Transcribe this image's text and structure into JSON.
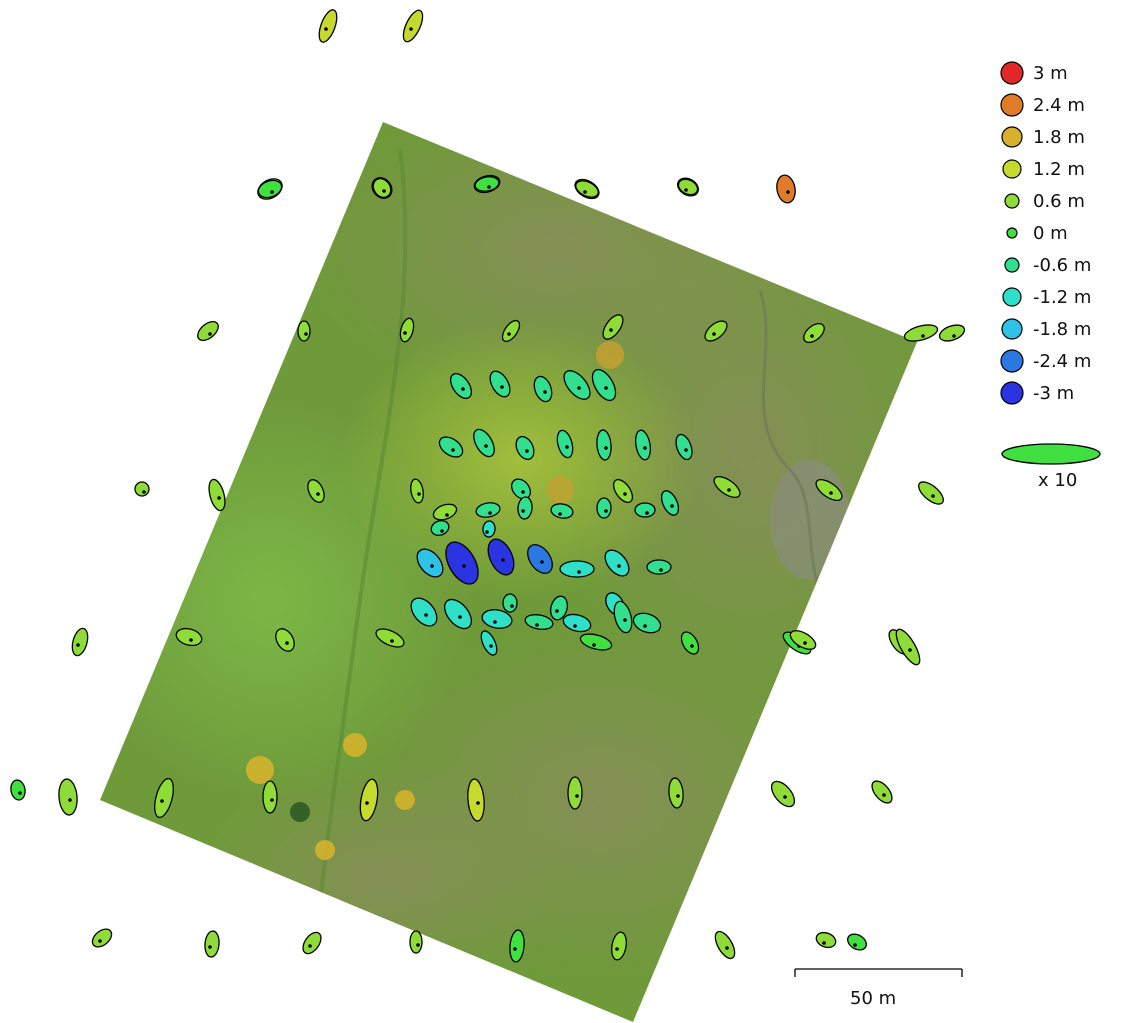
{
  "legend": {
    "items": [
      {
        "label": "3 m",
        "color": "#e02828"
      },
      {
        "label": "2.4 m",
        "color": "#e07b2a"
      },
      {
        "label": "1.8 m",
        "color": "#d9b02e"
      },
      {
        "label": "1.2 m",
        "color": "#c6da2e"
      },
      {
        "label": "0.6 m",
        "color": "#8fdc38"
      },
      {
        "label": "0 m",
        "color": "#3fe040"
      },
      {
        "label": "-0.6 m",
        "color": "#32df8f"
      },
      {
        "label": "-1.2 m",
        "color": "#2ee0c8"
      },
      {
        "label": "-1.8 m",
        "color": "#2ec2e6"
      },
      {
        "label": "-2.4 m",
        "color": "#2c78e2"
      },
      {
        "label": "-3 m",
        "color": "#2a34e0"
      }
    ],
    "scale_ellipse_color": "#3fe040",
    "scale_factor_label": "x 10"
  },
  "scale_bar": {
    "label": "50 m"
  },
  "camera_errors": [
    {
      "level": "1.2 m"
    },
    {
      "level": "1.2 m"
    },
    {
      "level": "1.2 m"
    },
    {
      "level": "1.2 m"
    },
    {
      "level": "1.2 m"
    },
    {
      "level": "1.2 m"
    },
    {
      "level": "1.2 m"
    },
    {
      "level": "1.2 m"
    },
    {
      "level": "2.4 m"
    },
    {
      "level": "0.6 m"
    },
    {
      "level": "0.6 m"
    },
    {
      "level": "0.6 m"
    },
    {
      "level": "0.6 m"
    },
    {
      "level": "0.6 m"
    },
    {
      "level": "0.6 m"
    },
    {
      "level": "0.6 m"
    },
    {
      "level": "0.6 m"
    },
    {
      "level": "0.6 m"
    },
    {
      "level": "-0.6 m"
    },
    {
      "level": "-0.6 m"
    },
    {
      "level": "-0.6 m"
    },
    {
      "level": "-0.6 m"
    },
    {
      "level": "-0.6 m"
    },
    {
      "level": "-0.6 m"
    },
    {
      "level": "-0.6 m"
    },
    {
      "level": "-0.6 m"
    },
    {
      "level": "-0.6 m"
    },
    {
      "level": "-0.6 m"
    },
    {
      "level": "-0.6 m"
    },
    {
      "level": "-0.6 m"
    },
    {
      "level": "-0.6 m"
    },
    {
      "level": "0.6 m"
    },
    {
      "level": "-0.6 m"
    },
    {
      "level": "-0.6 m"
    },
    {
      "level": "-0.6 m"
    },
    {
      "level": "-0.6 m"
    },
    {
      "level": "0.6 m"
    },
    {
      "level": "-0.6 m"
    },
    {
      "level": "-0.6 m"
    },
    {
      "level": "-0.6 m"
    },
    {
      "level": "-1.8 m"
    },
    {
      "level": "-3 m"
    },
    {
      "level": "-3 m"
    },
    {
      "level": "-2.4 m"
    },
    {
      "level": "-1.2 m"
    },
    {
      "level": "-1.2 m"
    },
    {
      "level": "-0.6 m"
    },
    {
      "level": "-1.2 m"
    },
    {
      "level": "-1.2 m"
    },
    {
      "level": "-1.2 m"
    },
    {
      "level": "-0.6 m"
    },
    {
      "level": "-0.6 m"
    },
    {
      "level": "-0.6 m"
    },
    {
      "level": "0 m"
    },
    {
      "level": "-1.2 m"
    },
    {
      "level": "-1.2 m"
    },
    {
      "level": "-0.6 m"
    },
    {
      "level": "-0.6 m"
    },
    {
      "level": "-1.2 m"
    },
    {
      "level": "-1.2 m"
    },
    {
      "level": "0 m"
    },
    {
      "level": "0 m"
    },
    {
      "level": "0.6 m"
    },
    {
      "level": "0.6 m"
    },
    {
      "level": "0.6 m"
    },
    {
      "level": "0.6 m"
    },
    {
      "level": "0.6 m"
    },
    {
      "level": "0.6 m"
    },
    {
      "level": "0.6 m"
    },
    {
      "level": "0.6 m"
    },
    {
      "level": "0.6 m"
    },
    {
      "level": "0.6 m"
    },
    {
      "level": "0.6 m"
    },
    {
      "level": "0.6 m"
    },
    {
      "level": "0.6 m"
    },
    {
      "level": "0 m"
    },
    {
      "level": "0.6 m"
    },
    {
      "level": "0.6 m"
    },
    {
      "level": "0.6 m"
    },
    {
      "level": "1.2 m"
    },
    {
      "level": "1.2 m"
    },
    {
      "level": "0.6 m"
    },
    {
      "level": "0.6 m"
    },
    {
      "level": "0.6 m"
    },
    {
      "level": "0.6 m"
    },
    {
      "level": "0.6 m"
    },
    {
      "level": "0.6 m"
    },
    {
      "level": "0.6 m"
    },
    {
      "level": "0.6 m"
    },
    {
      "level": "0 m"
    },
    {
      "level": "0.6 m"
    },
    {
      "level": "0.6 m"
    },
    {
      "level": "0.6 m"
    },
    {
      "level": "0 m"
    },
    {
      "level": "0 m"
    },
    {
      "level": "0.6 m"
    },
    {
      "level": "0 m"
    },
    {
      "level": "0.6 m"
    },
    {
      "level": "0.6 m"
    },
    {
      "level": "0.6 m"
    }
  ]
}
